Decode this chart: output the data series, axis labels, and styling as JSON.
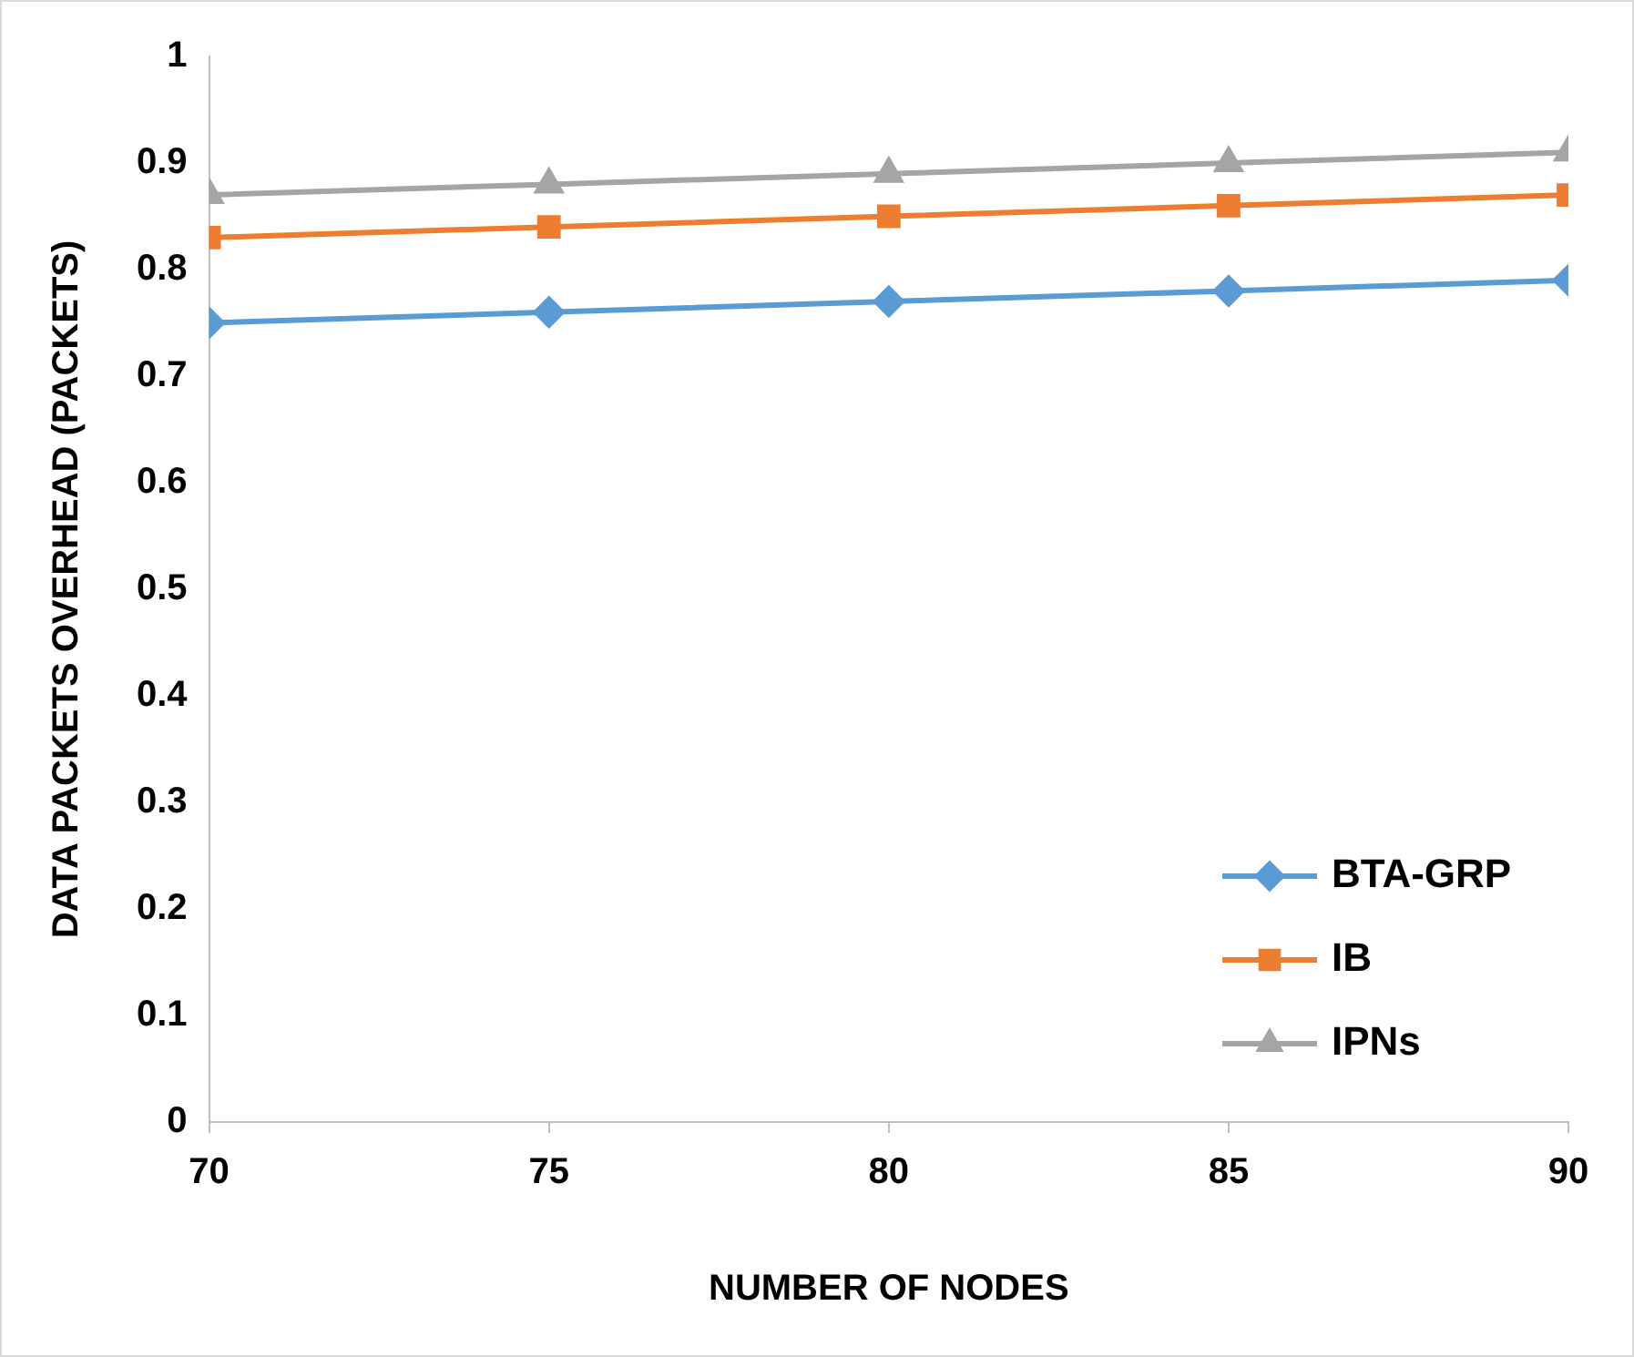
{
  "chart_data": {
    "type": "line",
    "xlabel": "NUMBER OF NODES",
    "ylabel": "DATA PACKETS OVERHEAD (PACKETS)",
    "x": [
      70,
      75,
      80,
      85,
      90
    ],
    "series": [
      {
        "name": "BTA-GRP",
        "color": "#5b9bd5",
        "marker": "diamond",
        "values": [
          0.75,
          0.76,
          0.77,
          0.78,
          0.79
        ]
      },
      {
        "name": "IB",
        "color": "#ed7d31",
        "marker": "square",
        "values": [
          0.83,
          0.84,
          0.85,
          0.86,
          0.87
        ]
      },
      {
        "name": "IPNs",
        "color": "#a5a5a5",
        "marker": "triangle",
        "values": [
          0.87,
          0.88,
          0.89,
          0.9,
          0.91
        ]
      }
    ],
    "xlim": [
      70,
      90
    ],
    "xticks": [
      70,
      75,
      80,
      85,
      90
    ],
    "ylim": [
      0,
      1
    ],
    "yticks": [
      0,
      0.1,
      0.2,
      0.3,
      0.4,
      0.5,
      0.6,
      0.7,
      0.8,
      0.9,
      1
    ],
    "grid": false,
    "legend": "bottom right",
    "line_style": "solid"
  }
}
